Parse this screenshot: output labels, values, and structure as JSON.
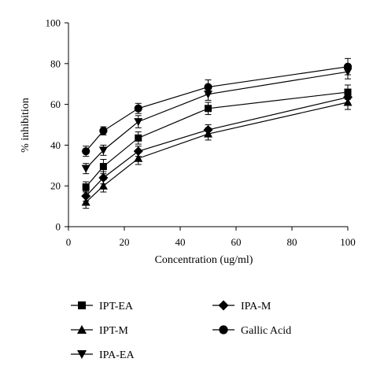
{
  "chart_data": {
    "type": "line",
    "title": "",
    "xlabel": "Concentration (ug/ml)",
    "ylabel": "% inhibition",
    "xlim": [
      0,
      100
    ],
    "ylim": [
      0,
      100
    ],
    "x_ticks": [
      0,
      20,
      40,
      60,
      80,
      100
    ],
    "y_ticks": [
      0,
      20,
      40,
      60,
      80,
      100
    ],
    "grid": false,
    "legend_position": "bottom",
    "x": [
      6.25,
      12.5,
      25,
      50,
      100
    ],
    "series": [
      {
        "name": "IPT-EA",
        "marker": "square",
        "values": [
          19.5,
          29.5,
          43.5,
          58,
          66
        ],
        "errors": [
          2.5,
          3.5,
          3,
          3,
          3.5
        ]
      },
      {
        "name": "IPT-M",
        "marker": "triangle-up",
        "values": [
          12,
          20,
          33.5,
          45.5,
          61
        ],
        "errors": [
          3,
          3,
          3,
          3,
          3.5
        ]
      },
      {
        "name": "IPA-EA",
        "marker": "triangle-down",
        "values": [
          28.5,
          37.5,
          51.5,
          65,
          76
        ],
        "errors": [
          2.5,
          2.5,
          3,
          3,
          3.5
        ]
      },
      {
        "name": "IPA-M",
        "marker": "diamond",
        "values": [
          15,
          24,
          37,
          47.5,
          63.5
        ],
        "errors": [
          2.5,
          3,
          2.5,
          2.5,
          3
        ]
      },
      {
        "name": "Gallic Acid",
        "marker": "circle",
        "values": [
          37,
          47,
          58,
          68.5,
          78.5
        ],
        "errors": [
          2.5,
          2,
          2.5,
          3.5,
          4
        ]
      }
    ]
  }
}
